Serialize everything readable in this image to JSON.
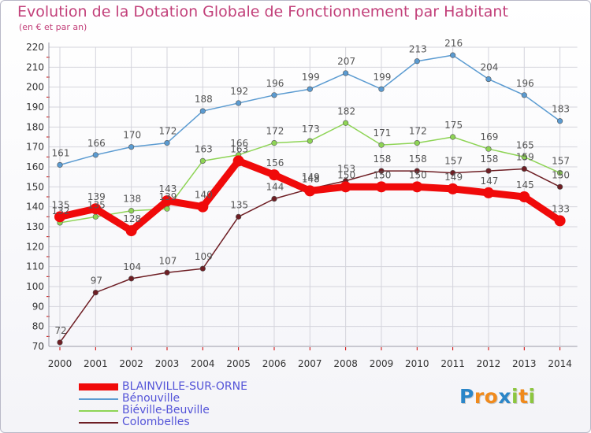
{
  "header": {
    "title": "Evolution de la Dotation Globale de Fonctionnement par Habitant",
    "subtitle": "(en € et par an)"
  },
  "chart_data": {
    "type": "line",
    "title": "Evolution de la Dotation Globale de Fonctionnement par Habitant",
    "subtitle": "(en € et par an)",
    "x": [
      2000,
      2001,
      2002,
      2003,
      2004,
      2005,
      2006,
      2007,
      2008,
      2009,
      2010,
      2011,
      2012,
      2013,
      2014
    ],
    "xticklabels": [
      "2000",
      "2001",
      "2002",
      "2003",
      "2004",
      "2005",
      "2006",
      "2007",
      "2008",
      "2009",
      "2010",
      "2011",
      "2012",
      "2013",
      "2014"
    ],
    "ylim": [
      70,
      220
    ],
    "yticks": [
      70,
      80,
      90,
      100,
      110,
      120,
      130,
      140,
      150,
      160,
      170,
      180,
      190,
      200,
      210,
      220
    ],
    "grid": true,
    "legend_position": "bottom-left",
    "series": [
      {
        "name": "Bénouville",
        "color": "#5b9bd1",
        "values": [
          161,
          166,
          170,
          172,
          188,
          192,
          196,
          199,
          207,
          199,
          213,
          216,
          204,
          196,
          183
        ]
      },
      {
        "name": "Biéville-Beuville",
        "color": "#8ed455",
        "values": [
          132,
          135,
          138,
          139,
          163,
          166,
          172,
          173,
          182,
          171,
          172,
          175,
          169,
          165,
          157
        ]
      },
      {
        "name": "Colombelles",
        "color": "#6e1e24",
        "values": [
          72,
          97,
          104,
          107,
          109,
          135,
          144,
          149,
          153,
          158,
          158,
          157,
          158,
          159,
          150
        ]
      },
      {
        "name": "BLAINVILLE-SUR-ORNE",
        "color": "#f00a0a",
        "values": [
          135,
          139,
          128,
          143,
          140,
          163,
          156,
          148,
          150,
          150,
          150,
          149,
          147,
          145,
          133
        ]
      }
    ]
  },
  "legend": [
    {
      "label": "BLAINVILLE-SUR-ORNE",
      "color": "#f00a0a",
      "thick": true
    },
    {
      "label": "Bénouville",
      "color": "#5b9bd1",
      "thick": false
    },
    {
      "label": "Biéville-Beuville",
      "color": "#8ed455",
      "thick": false
    },
    {
      "label": "Colombelles",
      "color": "#6e1e24",
      "thick": false
    }
  ],
  "brand": {
    "letters": [
      "P",
      "r",
      "o",
      "x",
      "i",
      "t",
      "i"
    ],
    "colors": [
      "#2b86c8",
      "#f08a1c",
      "#f08a1c",
      "#2b86c8",
      "#8cc63e",
      "#f08a1c",
      "#8cc63e"
    ]
  }
}
